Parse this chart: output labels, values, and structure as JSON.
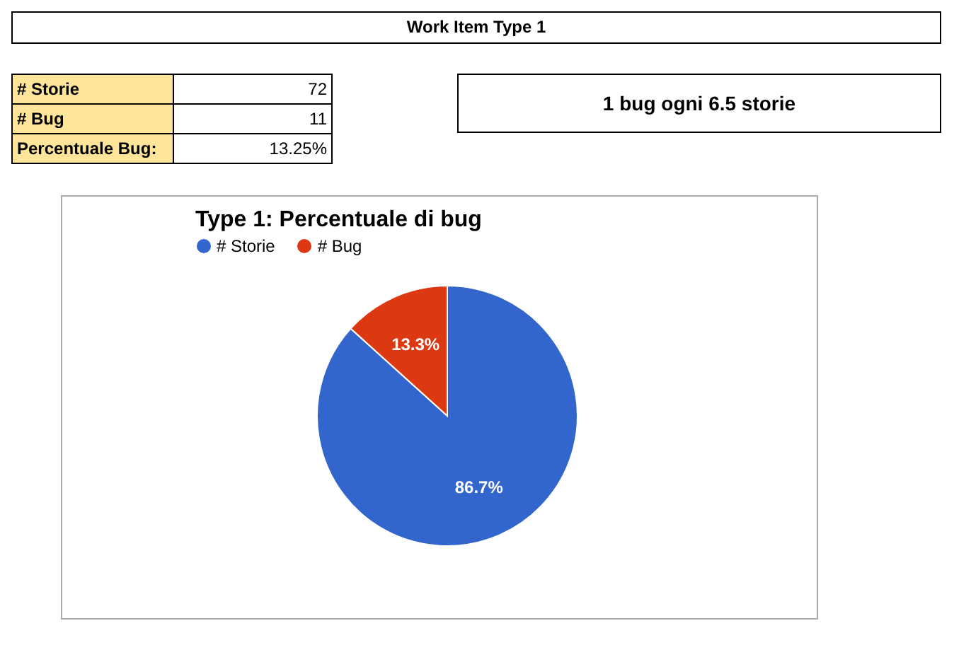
{
  "chart_data": [
    {
      "type": "other",
      "title": "Work Item Type 1",
      "annotations": [
        "# Storie",
        "72",
        "# Bug",
        "11",
        "Percentuale Bug:",
        "13.25%",
        "1 bug ogni 6.5 storie"
      ]
    },
    {
      "type": "pie",
      "title": "Type 1: Percentuale di bug",
      "categories": [
        "# Storie",
        "# Bug"
      ],
      "values": [
        86.7,
        13.3
      ],
      "colors": [
        "#3366cc",
        "#dc3912"
      ],
      "value_labels": [
        "86.7%",
        "13.3%"
      ],
      "legend": "top left"
    }
  ]
}
